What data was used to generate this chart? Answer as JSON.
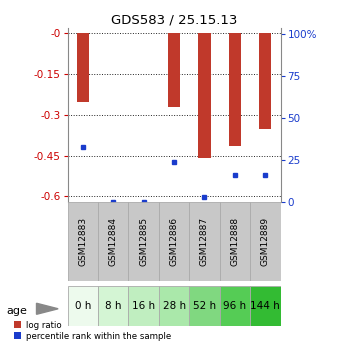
{
  "title": "GDS583 / 25.15.13",
  "samples": [
    "GSM12883",
    "GSM12884",
    "GSM12885",
    "GSM12886",
    "GSM12887",
    "GSM12888",
    "GSM12889"
  ],
  "ages": [
    "0 h",
    "8 h",
    "16 h",
    "28 h",
    "52 h",
    "96 h",
    "144 h"
  ],
  "log_ratios": [
    -0.255,
    0.0,
    0.0,
    -0.273,
    -0.46,
    -0.415,
    -0.352
  ],
  "percentile_ranks": [
    33,
    0,
    0,
    24,
    3,
    16,
    16
  ],
  "ylim_left": [
    -0.62,
    0.02
  ],
  "ylim_right": [
    0,
    104
  ],
  "yticks_left": [
    0.0,
    -0.15,
    -0.3,
    -0.45,
    -0.6
  ],
  "ytick_labels_left": [
    "-0",
    "-0.15",
    "-0.3",
    "-0.45",
    "-0.6"
  ],
  "yticks_right": [
    0,
    25,
    50,
    75,
    100
  ],
  "ytick_labels_right": [
    "0",
    "25",
    "50",
    "75",
    "100%"
  ],
  "bar_color": "#c0392b",
  "dot_color": "#1a3ccc",
  "bar_width": 0.4,
  "sample_bg_color": "#c8c8c8",
  "age_colors": [
    "#edfaed",
    "#d4f5d4",
    "#c0eec0",
    "#aae8aa",
    "#80d880",
    "#55cc55",
    "#33bb33"
  ],
  "left_tick_color": "#cc0000",
  "right_tick_color": "#1a3ccc",
  "grid_color": "#222222"
}
